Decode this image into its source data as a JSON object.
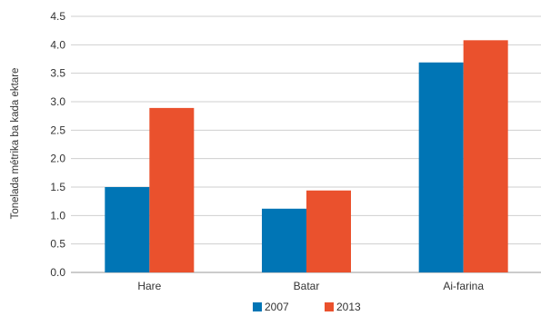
{
  "chart_data": {
    "type": "bar",
    "title": "",
    "xlabel": "",
    "ylabel": "Tonelada métrika ba kada ektare",
    "categories": [
      "Hare",
      "Batar",
      "Ai-farina"
    ],
    "series": [
      {
        "name": "2007",
        "values": [
          1.5,
          1.12,
          3.69
        ],
        "color": "#0075b5"
      },
      {
        "name": "2013",
        "values": [
          2.89,
          1.44,
          4.08
        ],
        "color": "#ea512d"
      }
    ],
    "ylim": [
      0,
      4.5
    ],
    "yticks": [
      "0.0",
      "0.5",
      "1.0",
      "1.5",
      "2.0",
      "2.5",
      "3.0",
      "3.5",
      "4.0",
      "4.5"
    ],
    "grid": true,
    "legend_position": "bottom-center"
  }
}
